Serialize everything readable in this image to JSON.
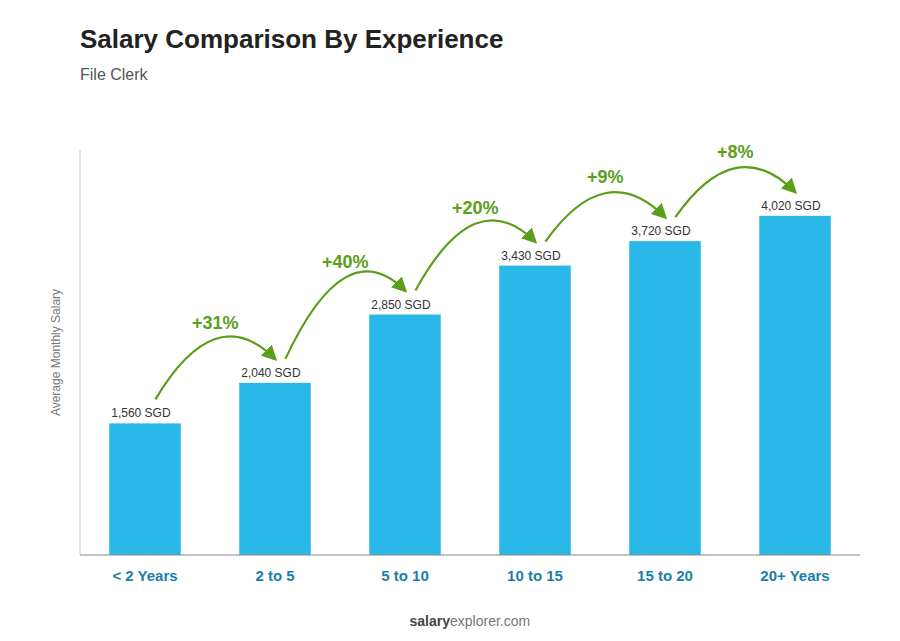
{
  "chart_data": {
    "type": "bar",
    "title": "Salary Comparison By Experience",
    "subtitle": "File Clerk",
    "categories": [
      "< 2 Years",
      "2 to 5",
      "5 to 10",
      "10 to 15",
      "15 to 20",
      "20+ Years"
    ],
    "values": [
      1560,
      2040,
      2850,
      3430,
      3720,
      4020
    ],
    "value_labels": [
      "1,560 SGD",
      "2,040 SGD",
      "2,850 SGD",
      "3,430 SGD",
      "3,720 SGD",
      "4,020 SGD"
    ],
    "data_labels": true,
    "annotations": [
      "+31%",
      "+40%",
      "+20%",
      "+9%",
      "+8%"
    ],
    "ylabel": "Average Monthly Salary",
    "watermark": [
      "salary",
      "explorer.com"
    ],
    "color": "#29b8e8",
    "ylim": [
      0,
      4800
    ],
    "tick_labels": "x",
    "grid": false
  }
}
